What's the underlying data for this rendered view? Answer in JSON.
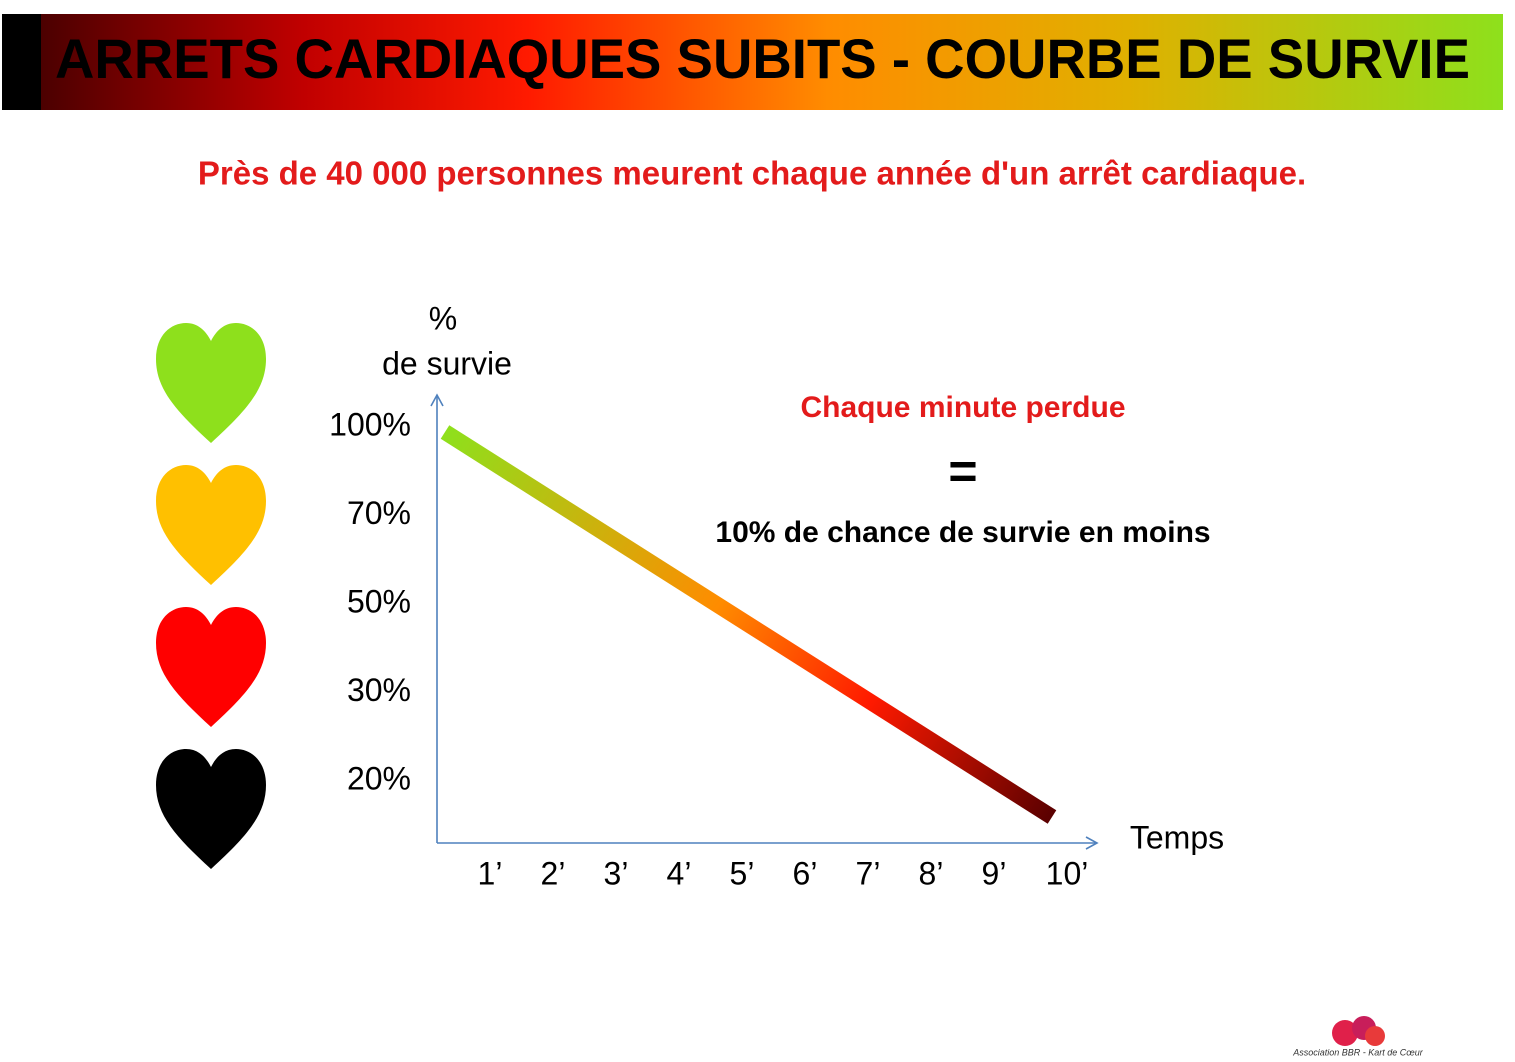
{
  "header": {
    "title": "ARRETS CARDIAQUES  SUBITS  - COURBE DE SURVIE"
  },
  "subtitle": "Près de 40 000 personnes meurent chaque année d'un arrêt cardiaque.",
  "diagram": {
    "y_axis_label": [
      "%",
      "de survie"
    ],
    "y_labels": [
      "100%",
      "70%",
      "50%",
      "30%",
      "20%"
    ],
    "x_labels": [
      "1’",
      "2’",
      "3’",
      "4’",
      "5’",
      "6’",
      "7’",
      "8’",
      "9’",
      "10’"
    ],
    "x_axis_label": "Temps",
    "annotation": {
      "line1": "Chaque minute perdue",
      "equals": "=",
      "line2": "10%  de chance de survie en moins"
    }
  },
  "footer": {
    "logo_text": "Association BBR - Kart de Cœur"
  }
}
